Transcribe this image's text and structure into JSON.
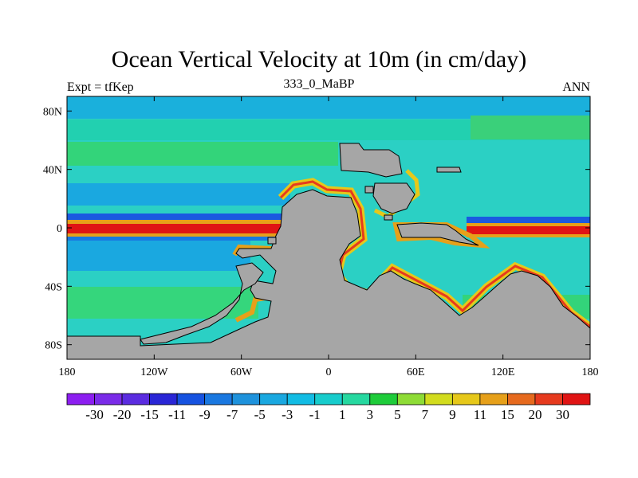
{
  "header": {
    "title": "Ocean Vertical Velocity at 10m (in cm/day)",
    "left_label": "Expt = tfKep",
    "center_label": "333_0_MaBP",
    "right_label": "ANN"
  },
  "map": {
    "projection": "cylindrical-equidistant",
    "lon_range": [
      -180,
      180
    ],
    "lat_range": [
      -90,
      90
    ],
    "x_ticks": [
      {
        "lon": -180,
        "label": "180"
      },
      {
        "lon": -120,
        "label": "120W"
      },
      {
        "lon": -60,
        "label": "60W"
      },
      {
        "lon": 0,
        "label": "0"
      },
      {
        "lon": 60,
        "label": "60E"
      },
      {
        "lon": 120,
        "label": "120E"
      },
      {
        "lon": 180,
        "label": "180"
      }
    ],
    "y_ticks": [
      {
        "lat": 80,
        "label": "80N"
      },
      {
        "lat": 40,
        "label": "40N"
      },
      {
        "lat": 0,
        "label": "0"
      },
      {
        "lat": -40,
        "label": "40S"
      },
      {
        "lat": -80,
        "label": "80S"
      }
    ],
    "land_color": "#a6a6a6",
    "ocean_background_color": "#2bd0c4"
  },
  "colorbar": {
    "labels": [
      "-30",
      "-20",
      "-15",
      "-11",
      "-9",
      "-7",
      "-5",
      "-3",
      "-1",
      "1",
      "3",
      "5",
      "7",
      "9",
      "11",
      "15",
      "20",
      "30"
    ],
    "colors": [
      "#8c1ef0",
      "#7a2be8",
      "#5b2ce0",
      "#2a26d6",
      "#1652e0",
      "#1a78e0",
      "#1e92dc",
      "#1aa8e0",
      "#12bce4",
      "#17cccc",
      "#26d8a0",
      "#1ecc3a",
      "#8edc36",
      "#d2dc1e",
      "#e6c81a",
      "#e6a01a",
      "#e66a1e",
      "#e63a1e",
      "#e01414"
    ]
  }
}
